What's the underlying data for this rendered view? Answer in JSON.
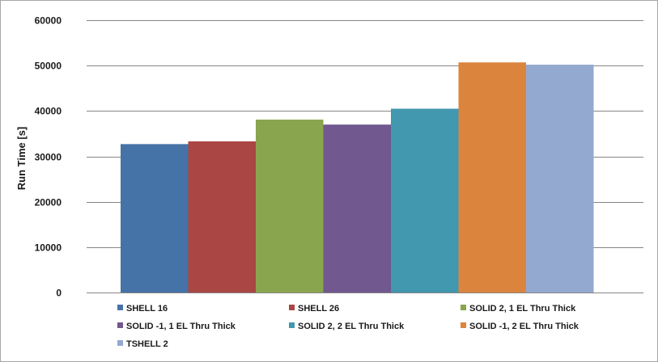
{
  "chart_data": {
    "type": "bar",
    "ylabel": "Run Time [s]",
    "ylim": [
      0,
      60000
    ],
    "yticks": [
      "0",
      "10000",
      "20000",
      "30000",
      "40000",
      "50000",
      "60000"
    ],
    "grid": true,
    "legend_position": "bottom",
    "series": [
      {
        "name": "SHELL 16",
        "value": 32700,
        "color": "#4573a7"
      },
      {
        "name": "SHELL 26",
        "value": 33300,
        "color": "#aa4643"
      },
      {
        "name": "SOLID 2, 1 EL Thru Thick",
        "value": 38100,
        "color": "#89a54e"
      },
      {
        "name": "SOLID -1, 1 EL Thru Thick",
        "value": 37000,
        "color": "#71588f"
      },
      {
        "name": "SOLID 2, 2 EL Thru Thick",
        "value": 40500,
        "color": "#4198af"
      },
      {
        "name": "SOLID -1, 2 EL Thru Thick",
        "value": 50700,
        "color": "#db843d"
      },
      {
        "name": "TSHELL 2",
        "value": 50200,
        "color": "#93a9cf"
      }
    ]
  }
}
